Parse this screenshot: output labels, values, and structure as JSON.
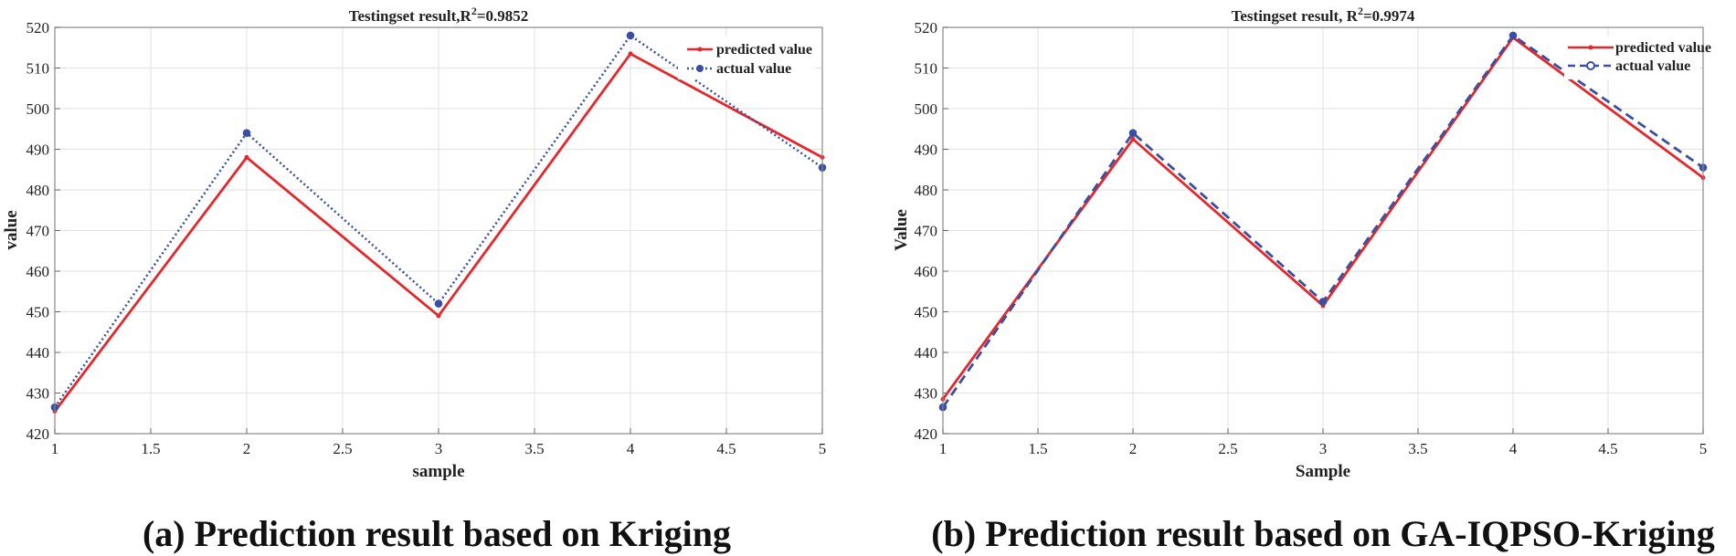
{
  "chart_data": [
    {
      "type": "line",
      "title": "Testingset result,R",
      "title_sup": "2",
      "title_value": "=0.9852",
      "xlabel": "sample",
      "ylabel": "value",
      "xlim": [
        1,
        5
      ],
      "ylim": [
        420,
        520
      ],
      "xticks": [
        "1",
        "1.5",
        "2",
        "2.5",
        "3",
        "3.5",
        "4",
        "4.5",
        "5"
      ],
      "yticks": [
        "420",
        "430",
        "440",
        "450",
        "460",
        "470",
        "480",
        "490",
        "500",
        "510",
        "520"
      ],
      "x": [
        1,
        2,
        3,
        4,
        5
      ],
      "series": [
        {
          "name": "predicted value",
          "color": "#e8262a",
          "style": "solid",
          "marker": "dot",
          "values": [
            425.5,
            488.0,
            449.0,
            513.5,
            488.0
          ]
        },
        {
          "name": "actual value",
          "color": "#3a4fa3",
          "style": "dotted",
          "marker": "circle",
          "values": [
            426.5,
            494.0,
            452.0,
            518.0,
            485.5
          ]
        }
      ],
      "grid": true,
      "legend": "top-right",
      "caption": "(a) Prediction result based on Kriging"
    },
    {
      "type": "line",
      "title": "Testingset result,  R",
      "title_sup": "2",
      "title_value": "=0.9974",
      "xlabel": "Sample",
      "ylabel": "Value",
      "xlim": [
        1,
        5
      ],
      "ylim": [
        420,
        520
      ],
      "xticks": [
        "1",
        "1.5",
        "2",
        "2.5",
        "3",
        "3.5",
        "4",
        "4.5",
        "5"
      ],
      "yticks": [
        "420",
        "430",
        "440",
        "450",
        "460",
        "470",
        "480",
        "490",
        "500",
        "510",
        "520"
      ],
      "x": [
        1,
        2,
        3,
        4,
        5
      ],
      "series": [
        {
          "name": "predicted value",
          "color": "#e8262a",
          "style": "solid",
          "marker": "dot",
          "values": [
            428.5,
            492.5,
            451.5,
            517.5,
            483.0
          ]
        },
        {
          "name": "actual  value",
          "color": "#3a4fa3",
          "style": "dashed",
          "marker": "circle",
          "values": [
            426.5,
            494.0,
            452.5,
            518.0,
            485.5
          ]
        }
      ],
      "grid": true,
      "legend": "top-right",
      "caption": "(b) Prediction result based on GA-IQPSO-Kriging"
    }
  ]
}
